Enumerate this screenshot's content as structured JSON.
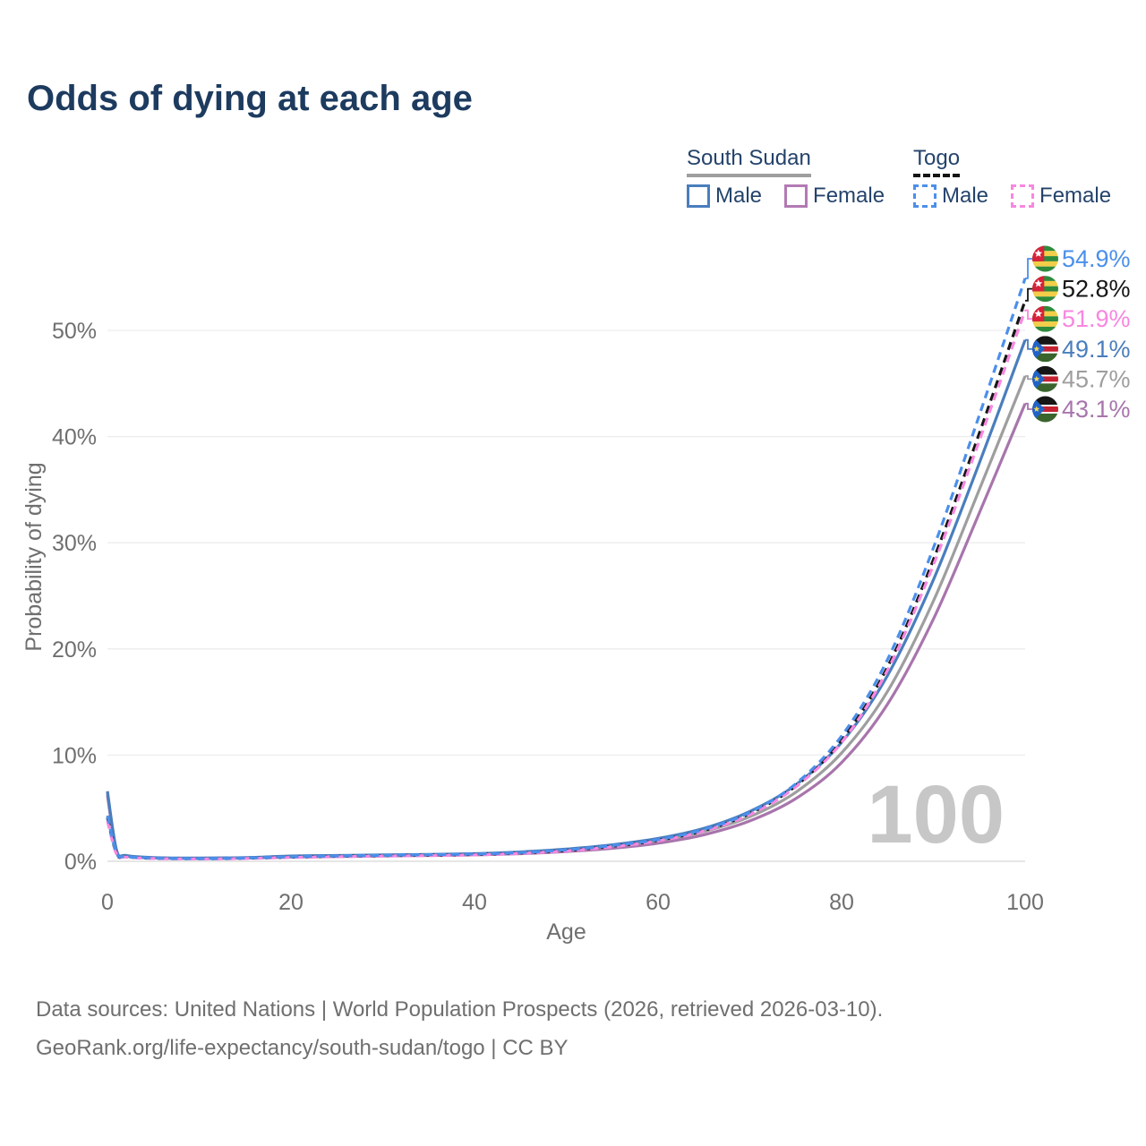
{
  "header": {
    "title": "Odds of dying at each age"
  },
  "legend": {
    "groups": [
      {
        "name": "South Sudan",
        "line_style": "solid",
        "underline_color": "#9e9e9e",
        "items": [
          {
            "label": "Male",
            "color": "#4a7ebd"
          },
          {
            "label": "Female",
            "color": "#b27ab4"
          }
        ]
      },
      {
        "name": "Togo",
        "line_style": "dashed",
        "underline_color": "#141414",
        "items": [
          {
            "label": "Male",
            "color": "#4b8feb"
          },
          {
            "label": "Female",
            "color": "#f887e0"
          }
        ]
      }
    ]
  },
  "chart_data": {
    "type": "line",
    "title": "Odds of dying at each age",
    "xlabel": "Age",
    "ylabel": "Probability of dying",
    "x_ticks": [
      0,
      20,
      40,
      60,
      80,
      100
    ],
    "y_ticks_percent": [
      0,
      10,
      20,
      30,
      40,
      50
    ],
    "xlim": [
      0,
      100
    ],
    "ylim": [
      0,
      57
    ],
    "grid": "horizontal",
    "legend_position": "top-right",
    "watermark": "100",
    "x": [
      0,
      1,
      2,
      5,
      10,
      15,
      20,
      25,
      30,
      35,
      40,
      45,
      50,
      55,
      60,
      65,
      70,
      75,
      80,
      85,
      90,
      95,
      100
    ],
    "series": [
      {
        "id": "south-sudan-both",
        "country": "South Sudan",
        "sex": "Both sexes",
        "style": "solid",
        "color": "#9e9e9e",
        "flag": "south-sudan-flag-icon",
        "flag_symbol": "flag-south-sudan",
        "end_label": "45.7%",
        "values": [
          6.4,
          0.95,
          0.52,
          0.33,
          0.28,
          0.32,
          0.45,
          0.5,
          0.55,
          0.6,
          0.66,
          0.8,
          1.02,
          1.38,
          1.92,
          2.8,
          4.2,
          6.5,
          10.2,
          16.0,
          24.5,
          35.0,
          45.7
        ]
      },
      {
        "id": "south-sudan-female",
        "country": "South Sudan",
        "sex": "Female",
        "style": "solid",
        "color": "#a875ac",
        "flag": "south-sudan-flag-icon",
        "flag_symbol": "flag-south-sudan",
        "end_label": "43.1%",
        "values": [
          6.2,
          0.9,
          0.5,
          0.32,
          0.27,
          0.3,
          0.4,
          0.45,
          0.5,
          0.55,
          0.6,
          0.72,
          0.92,
          1.22,
          1.7,
          2.5,
          3.8,
          5.9,
          9.3,
          14.8,
          22.8,
          32.8,
          43.1
        ]
      },
      {
        "id": "south-sudan-male",
        "country": "South Sudan",
        "sex": "Male",
        "style": "solid",
        "color": "#4a7ebd",
        "flag": "south-sudan-flag-icon",
        "flag_symbol": "flag-south-sudan",
        "end_label": "49.1%",
        "values": [
          6.6,
          1.0,
          0.55,
          0.35,
          0.3,
          0.35,
          0.5,
          0.55,
          0.6,
          0.65,
          0.72,
          0.88,
          1.15,
          1.55,
          2.15,
          3.1,
          4.7,
          7.2,
          11.2,
          17.5,
          26.5,
          37.5,
          49.1
        ]
      },
      {
        "id": "togo-both",
        "country": "Togo",
        "sex": "Both sexes",
        "style": "dashed",
        "color": "#161616",
        "flag": "togo-flag-icon",
        "flag_symbol": "flag-togo",
        "end_label": "52.8%",
        "values": [
          4.1,
          0.7,
          0.42,
          0.28,
          0.24,
          0.28,
          0.39,
          0.47,
          0.53,
          0.58,
          0.64,
          0.78,
          1.02,
          1.42,
          1.98,
          2.9,
          4.5,
          7.1,
          11.4,
          18.3,
          28.4,
          40.3,
          52.8
        ]
      },
      {
        "id": "togo-female",
        "country": "Togo",
        "sex": "Female",
        "style": "dashed",
        "color": "#f887e0",
        "flag": "togo-flag-icon",
        "flag_symbol": "flag-togo",
        "end_label": "51.9%",
        "values": [
          3.8,
          0.65,
          0.4,
          0.26,
          0.22,
          0.26,
          0.36,
          0.43,
          0.49,
          0.54,
          0.6,
          0.74,
          0.97,
          1.36,
          1.92,
          2.85,
          4.4,
          7.0,
          11.2,
          18.0,
          27.9,
          39.6,
          51.9
        ]
      },
      {
        "id": "togo-male",
        "country": "Togo",
        "sex": "Male",
        "style": "dashed",
        "color": "#4b8feb",
        "flag": "togo-flag-icon",
        "flag_symbol": "flag-togo",
        "end_label": "54.9%",
        "values": [
          4.3,
          0.75,
          0.45,
          0.3,
          0.25,
          0.3,
          0.42,
          0.5,
          0.56,
          0.62,
          0.68,
          0.82,
          1.08,
          1.48,
          2.05,
          3.0,
          4.6,
          7.3,
          11.8,
          19.0,
          29.5,
          42.0,
          54.9
        ]
      }
    ]
  },
  "footer": {
    "line1": "Data sources: United Nations | World Population Prospects (2026, retrieved 2026-03-10).",
    "line2": "GeoRank.org/life-expectancy/south-sudan/togo | CC BY"
  }
}
